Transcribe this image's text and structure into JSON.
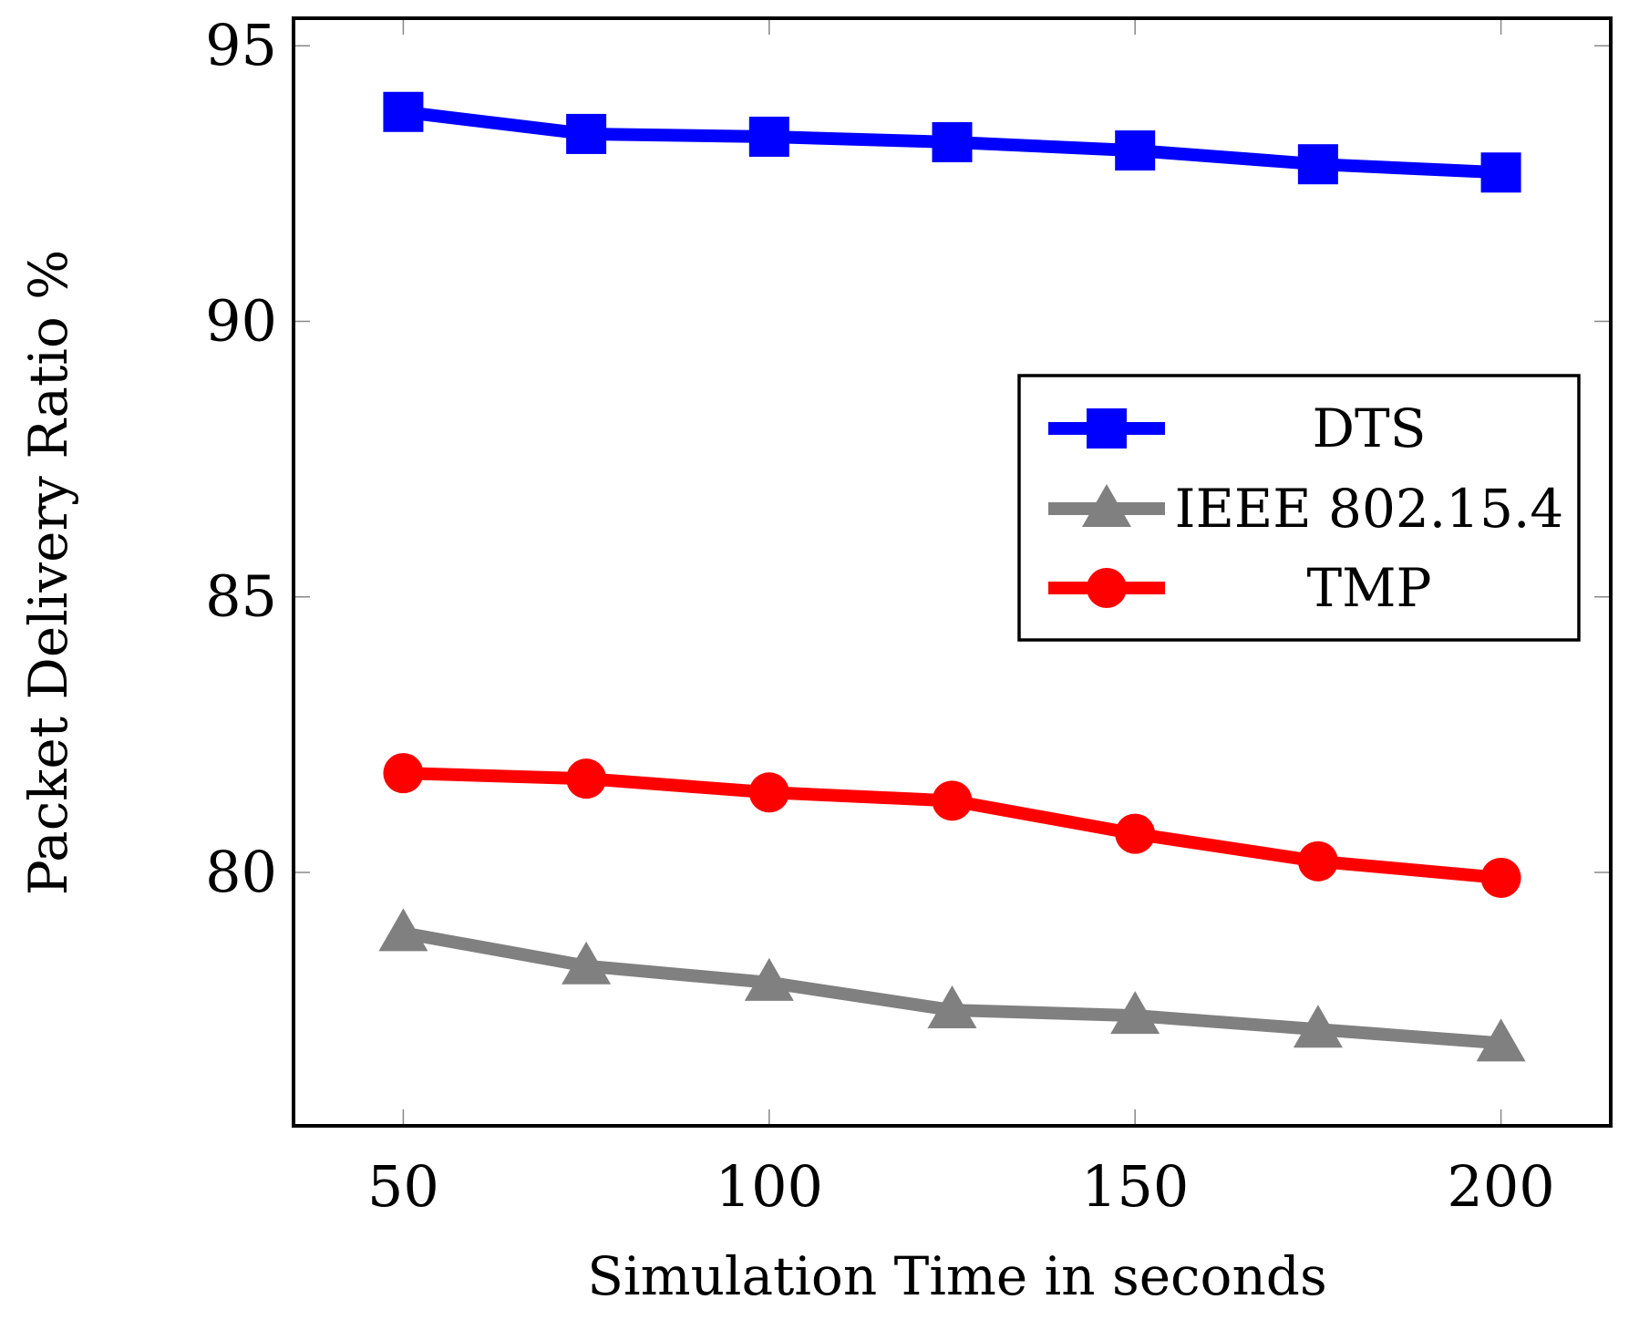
{
  "chart_data": {
    "type": "line",
    "title": "",
    "xlabel": "Simulation Time in seconds",
    "ylabel": "Packet Delivery Ratio %",
    "x": [
      50,
      75,
      100,
      125,
      150,
      175,
      200
    ],
    "xlim": [
      35,
      215
    ],
    "ylim": [
      75.4,
      95.5
    ],
    "xticks": [
      50,
      100,
      150,
      200
    ],
    "xtick_labels": [
      "50",
      "100",
      "150",
      "200"
    ],
    "yticks": [
      80,
      85,
      90,
      95
    ],
    "ytick_labels": [
      "80",
      "85",
      "90",
      "95"
    ],
    "grid": false,
    "legend_position": "center-right",
    "series": [
      {
        "name": "DTS",
        "color": "#0000ff",
        "marker": "square",
        "values": [
          93.8,
          93.4,
          93.35,
          93.25,
          93.1,
          92.85,
          92.7
        ]
      },
      {
        "name": "IEEE 802.15.4",
        "color": "#808080",
        "marker": "triangle",
        "values": [
          78.9,
          78.3,
          78.0,
          77.5,
          77.4,
          77.15,
          76.9
        ]
      },
      {
        "name": "TMP",
        "color": "#ff0000",
        "marker": "circle",
        "values": [
          81.8,
          81.7,
          81.45,
          81.3,
          80.7,
          80.2,
          79.9
        ]
      }
    ]
  }
}
